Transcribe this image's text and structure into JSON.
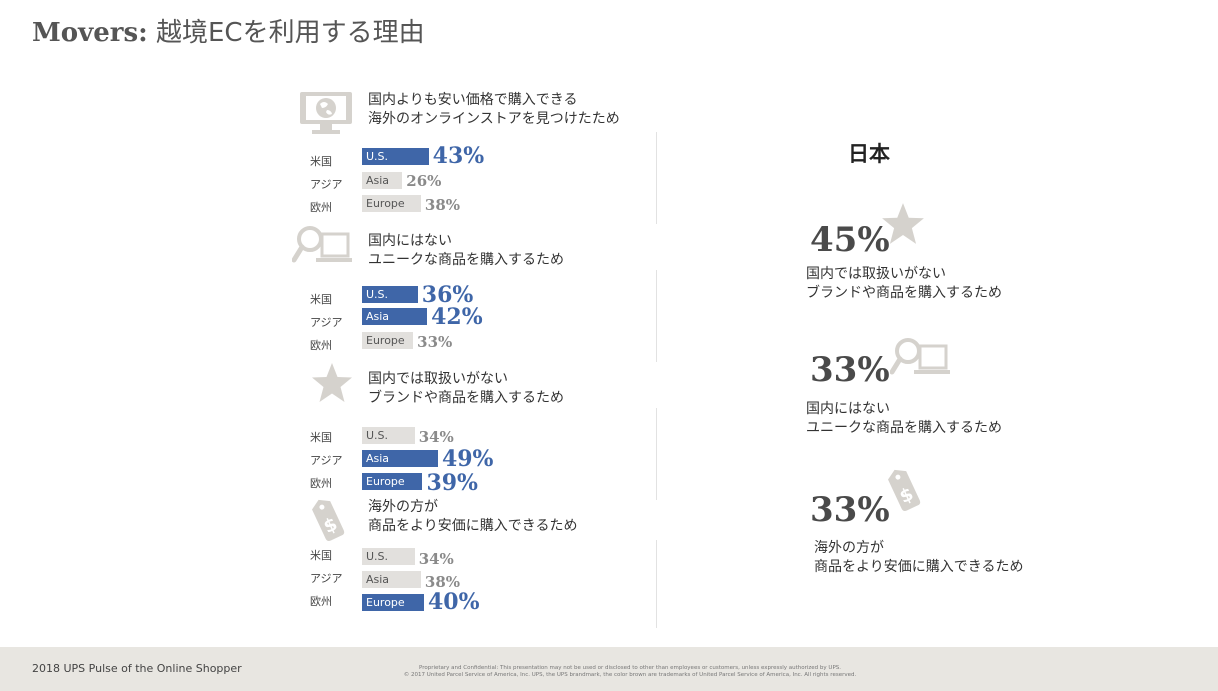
{
  "title": {
    "prefix": "Movers:",
    "main": " 越境ECを利用する理由"
  },
  "region_labels": [
    "米国",
    "アジア",
    "欧州"
  ],
  "chart_data": {
    "type": "bar",
    "orientation": "horizontal",
    "groups": [
      {
        "title_lines": [
          "国内よりも安い価格で購入できる",
          "海外のオンラインストアを見つけたため"
        ],
        "icon": "globe-monitor-icon",
        "bars": [
          {
            "region": "米国",
            "label": "U.S.",
            "value": 43,
            "display": "43%",
            "highlight": true
          },
          {
            "region": "アジア",
            "label": "Asia",
            "value": 26,
            "display": "26%",
            "highlight": false
          },
          {
            "region": "欧州",
            "label": "Europe",
            "value": 38,
            "display": "38%",
            "highlight": false
          }
        ]
      },
      {
        "title_lines": [
          "国内にはない",
          "ユニークな商品を購入するため"
        ],
        "icon": "search-laptop-icon",
        "bars": [
          {
            "region": "米国",
            "label": "U.S.",
            "value": 36,
            "display": "36%",
            "highlight": true
          },
          {
            "region": "アジア",
            "label": "Asia",
            "value": 42,
            "display": "42%",
            "highlight": true
          },
          {
            "region": "欧州",
            "label": "Europe",
            "value": 33,
            "display": "33%",
            "highlight": false
          }
        ]
      },
      {
        "title_lines": [
          "国内では取扱いがない",
          "ブランドや商品を購入するため"
        ],
        "icon": "star-icon",
        "bars": [
          {
            "region": "米国",
            "label": "U.S.",
            "value": 34,
            "display": "34%",
            "highlight": false
          },
          {
            "region": "アジア",
            "label": "Asia",
            "value": 49,
            "display": "49%",
            "highlight": true
          },
          {
            "region": "欧州",
            "label": "Europe",
            "value": 39,
            "display": "39%",
            "highlight": true
          }
        ]
      },
      {
        "title_lines": [
          "海外の方が",
          "商品をより安価に購入できるため"
        ],
        "icon": "price-tag-icon",
        "bars": [
          {
            "region": "米国",
            "label": "U.S.",
            "value": 34,
            "display": "34%",
            "highlight": false
          },
          {
            "region": "アジア",
            "label": "Asia",
            "value": 38,
            "display": "38%",
            "highlight": false
          },
          {
            "region": "欧州",
            "label": "Europe",
            "value": 40,
            "display": "40%",
            "highlight": true
          }
        ]
      }
    ]
  },
  "japan": {
    "heading": "日本",
    "items": [
      {
        "value": "45%",
        "icon": "star-icon",
        "lines": [
          "国内では取扱いがない",
          "ブランドや商品を購入するため"
        ]
      },
      {
        "value": "33%",
        "icon": "search-laptop-icon",
        "lines": [
          "国内にはない",
          "ユニークな商品を購入するため"
        ]
      },
      {
        "value": "33%",
        "icon": "price-tag-icon",
        "lines": [
          "海外の方が",
          "商品をより安価に購入できるため"
        ]
      }
    ]
  },
  "colors": {
    "highlight": "#3f66a8",
    "muted": "#e2e0dd",
    "icon": "#d5d2cd"
  },
  "footer": {
    "left": "2018 UPS Pulse of the Online Shopper",
    "legal_line1": "Proprietary and Confidential: This presentation may not be used or disclosed to other than employees or customers, unless expressly authorized by UPS.",
    "legal_line2": "© 2017 United Parcel Service of America, Inc. UPS, the UPS brandmark, the color brown are trademarks of United Parcel Service of America, Inc. All rights reserved."
  }
}
